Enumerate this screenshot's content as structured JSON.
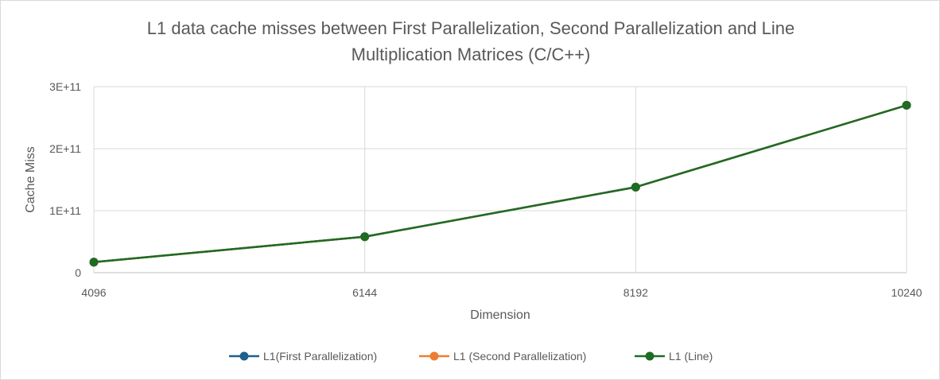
{
  "chart_data": {
    "type": "line",
    "title_line1": "L1 data cache misses between First Parallelization, Second Parallelization and Line",
    "title_line2": "Multiplication Matrices (C/C++)",
    "xlabel": "Dimension",
    "ylabel": "Cache Miss",
    "categories": [
      "4096",
      "6144",
      "8192",
      "10240"
    ],
    "y_tick_labels": [
      "0",
      "1E+11",
      "2E+11",
      "3E+11"
    ],
    "ylim": [
      0,
      300000000000
    ],
    "grid": true,
    "legend_position": "bottom",
    "series": [
      {
        "name": "L1(First Parallelization)",
        "color": "#1f5f8b",
        "values": [
          17000000000,
          58000000000,
          138000000000,
          270000000000
        ]
      },
      {
        "name": "L1 (Second Parallelization)",
        "color": "#ed7d31",
        "values": [
          17000000000,
          58000000000,
          138000000000,
          270000000000
        ]
      },
      {
        "name": "L1 (Line)",
        "color": "#1e6b24",
        "values": [
          17000000000,
          58000000000,
          138000000000,
          270000000000
        ]
      }
    ]
  }
}
